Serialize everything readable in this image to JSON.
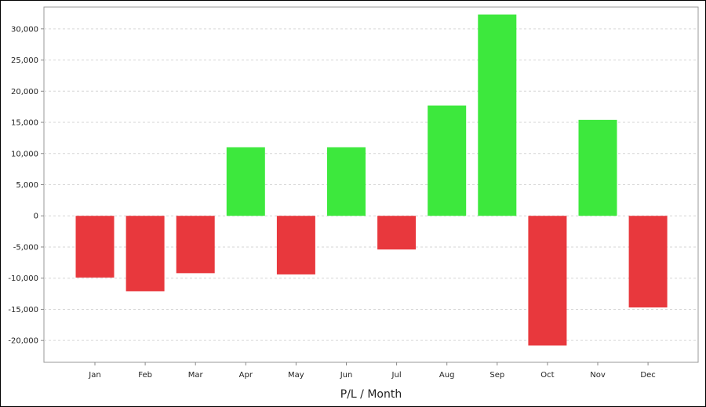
{
  "chart_data": {
    "type": "bar",
    "title": "",
    "xlabel": "P/L / Month",
    "ylabel": "",
    "categories": [
      "Jan",
      "Feb",
      "Mar",
      "Apr",
      "May",
      "Jun",
      "Jul",
      "Aug",
      "Sep",
      "Oct",
      "Nov",
      "Dec"
    ],
    "values": [
      -9900,
      -12100,
      -9200,
      11000,
      -9400,
      11000,
      -5400,
      17700,
      32300,
      -20800,
      15400,
      -14700
    ],
    "ylim": [
      -23500,
      33500
    ],
    "yticks": [
      -20000,
      -15000,
      -10000,
      -5000,
      0,
      5000,
      10000,
      15000,
      20000,
      25000,
      30000
    ],
    "ytick_labels": [
      "-20,000",
      "-15,000",
      "-10,000",
      "-5,000",
      "0",
      "5,000",
      "10,000",
      "15,000",
      "20,000",
      "25,000",
      "30,000"
    ],
    "grid": true,
    "legend": "none",
    "colors": {
      "positive": "#3de83d",
      "negative": "#e8383d",
      "grid": "#d6d6d6",
      "axis": "#888888"
    }
  }
}
